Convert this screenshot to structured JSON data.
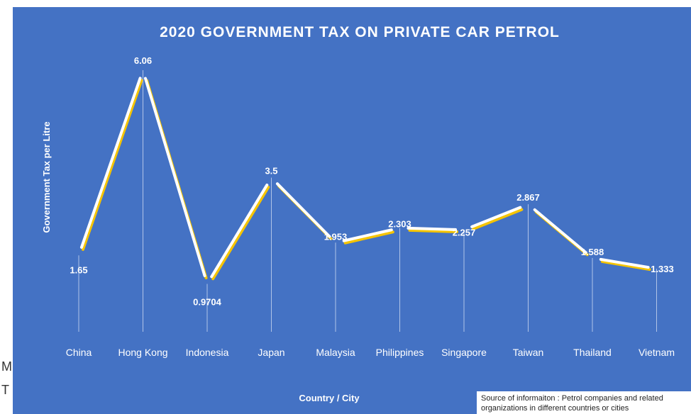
{
  "chart_data": {
    "type": "line",
    "title": "2020 GOVERNMENT TAX ON PRIVATE CAR PETROL",
    "xlabel": "Country / City",
    "ylabel": "Government Tax per Litre",
    "categories": [
      "China",
      "Hong Kong",
      "Indonesia",
      "Japan",
      "Malaysia",
      "Philippines",
      "Singapore",
      "Taiwan",
      "Thailand",
      "Vietnam"
    ],
    "values": [
      1.65,
      6.06,
      0.9704,
      3.5,
      1.953,
      2.303,
      2.257,
      2.867,
      1.588,
      1.333
    ],
    "data_labels": [
      "1.65",
      "6.06",
      "0.9704",
      "3.5",
      "1.953",
      "2.303",
      "2.257",
      "2.867",
      "1.588",
      "1.333"
    ],
    "ylim": [
      0,
      6.06
    ],
    "grid": false,
    "legend": "none",
    "colors": {
      "background": "#4472c4",
      "line": "#ffffff",
      "shadow": "#f5c400",
      "text": "#ffffff"
    }
  },
  "source_note": "Source of informaiton : Petrol companies and related organizations in different countries or cities",
  "side_fragments": [
    "M",
    "T"
  ]
}
